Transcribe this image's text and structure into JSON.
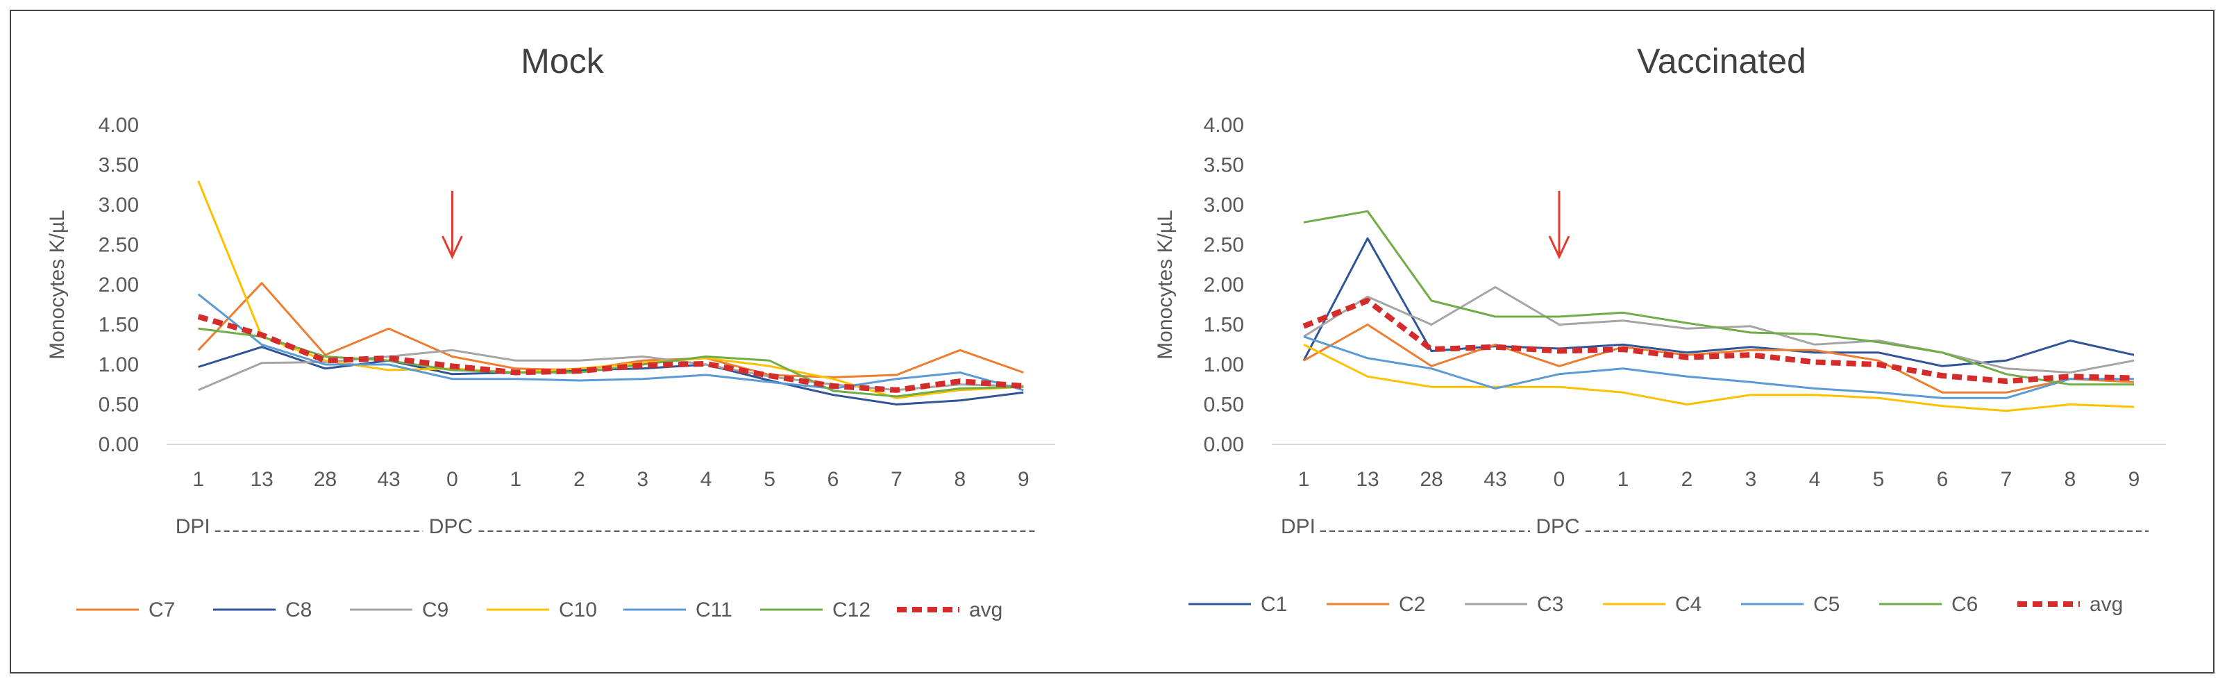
{
  "chart_data": [
    {
      "type": "line",
      "title": "Mock",
      "ylabel": "Monocytes K/µL",
      "xlabel": "",
      "ylim": [
        0,
        4
      ],
      "y_ticks": [
        "0.00",
        "0.50",
        "1.00",
        "1.50",
        "2.00",
        "2.50",
        "3.00",
        "3.50",
        "4.00"
      ],
      "categories": [
        "1",
        "13",
        "28",
        "43",
        "0",
        "1",
        "2",
        "3",
        "4",
        "5",
        "6",
        "7",
        "8",
        "9"
      ],
      "dpi_label": "DPI",
      "dpc_label": "DPC",
      "arrow_category_index": 4,
      "series": [
        {
          "name": "C7",
          "color": "#ED7D31",
          "values": [
            1.18,
            2.02,
            1.12,
            1.45,
            1.1,
            0.95,
            0.93,
            1.05,
            1.08,
            0.87,
            0.84,
            0.87,
            1.18,
            0.9
          ]
        },
        {
          "name": "C8",
          "color": "#2F5597",
          "values": [
            0.97,
            1.22,
            0.95,
            1.05,
            0.88,
            0.9,
            0.93,
            0.95,
            1.0,
            0.8,
            0.62,
            0.5,
            0.55,
            0.65
          ]
        },
        {
          "name": "C9",
          "color": "#A5A5A5",
          "values": [
            0.68,
            1.02,
            1.03,
            1.1,
            1.18,
            1.05,
            1.05,
            1.1,
            1.0,
            0.85,
            0.75,
            0.68,
            0.75,
            0.73
          ]
        },
        {
          "name": "C10",
          "color": "#FFC000",
          "values": [
            3.3,
            1.35,
            1.05,
            0.93,
            0.95,
            0.9,
            0.95,
            1.02,
            1.08,
            0.98,
            0.82,
            0.58,
            0.68,
            0.72
          ]
        },
        {
          "name": "C11",
          "color": "#5B9BD5",
          "values": [
            1.88,
            1.25,
            1.0,
            1.0,
            0.82,
            0.82,
            0.8,
            0.82,
            0.87,
            0.78,
            0.7,
            0.82,
            0.9,
            0.68
          ]
        },
        {
          "name": "C12",
          "color": "#70AD47",
          "values": [
            1.45,
            1.35,
            1.1,
            1.05,
            0.93,
            0.9,
            0.9,
            1.0,
            1.1,
            1.05,
            0.67,
            0.6,
            0.7,
            0.72
          ]
        },
        {
          "name": "avg",
          "color": "#D42B2B",
          "dashed": true,
          "values": [
            1.6,
            1.37,
            1.05,
            1.08,
            0.98,
            0.9,
            0.92,
            0.99,
            1.01,
            0.86,
            0.73,
            0.68,
            0.79,
            0.73
          ]
        }
      ]
    },
    {
      "type": "line",
      "title": "Vaccinated",
      "ylabel": "Monocytes K/µL",
      "xlabel": "",
      "ylim": [
        0,
        4
      ],
      "y_ticks": [
        "0.00",
        "0.50",
        "1.00",
        "1.50",
        "2.00",
        "2.50",
        "3.00",
        "3.50",
        "4.00"
      ],
      "categories": [
        "1",
        "13",
        "28",
        "43",
        "0",
        "1",
        "2",
        "3",
        "4",
        "5",
        "6",
        "7",
        "8",
        "9"
      ],
      "dpi_label": "DPI",
      "dpc_label": "DPC",
      "arrow_category_index": 4,
      "series": [
        {
          "name": "C1",
          "color": "#2F5597",
          "values": [
            1.05,
            2.58,
            1.17,
            1.23,
            1.2,
            1.25,
            1.15,
            1.22,
            1.15,
            1.15,
            0.98,
            1.05,
            1.3,
            1.12
          ]
        },
        {
          "name": "C2",
          "color": "#ED7D31",
          "values": [
            1.05,
            1.5,
            0.98,
            1.25,
            0.98,
            1.22,
            1.12,
            1.18,
            1.18,
            1.05,
            0.65,
            0.65,
            0.82,
            0.78
          ]
        },
        {
          "name": "C3",
          "color": "#A5A5A5",
          "values": [
            1.35,
            1.85,
            1.5,
            1.97,
            1.5,
            1.55,
            1.45,
            1.48,
            1.25,
            1.3,
            1.15,
            0.95,
            0.9,
            1.05
          ]
        },
        {
          "name": "C4",
          "color": "#FFC000",
          "values": [
            1.25,
            0.85,
            0.72,
            0.72,
            0.72,
            0.65,
            0.5,
            0.62,
            0.62,
            0.58,
            0.48,
            0.42,
            0.5,
            0.47
          ]
        },
        {
          "name": "C5",
          "color": "#5B9BD5",
          "values": [
            1.35,
            1.08,
            0.95,
            0.7,
            0.88,
            0.95,
            0.85,
            0.78,
            0.7,
            0.65,
            0.58,
            0.58,
            0.82,
            0.82
          ]
        },
        {
          "name": "C6",
          "color": "#70AD47",
          "values": [
            2.78,
            2.92,
            1.8,
            1.6,
            1.6,
            1.65,
            1.52,
            1.4,
            1.38,
            1.28,
            1.15,
            0.88,
            0.75,
            0.75
          ]
        },
        {
          "name": "avg",
          "color": "#D42B2B",
          "dashed": true,
          "values": [
            1.48,
            1.8,
            1.19,
            1.22,
            1.17,
            1.19,
            1.09,
            1.12,
            1.03,
            1.0,
            0.86,
            0.79,
            0.85,
            0.83
          ]
        }
      ]
    }
  ]
}
